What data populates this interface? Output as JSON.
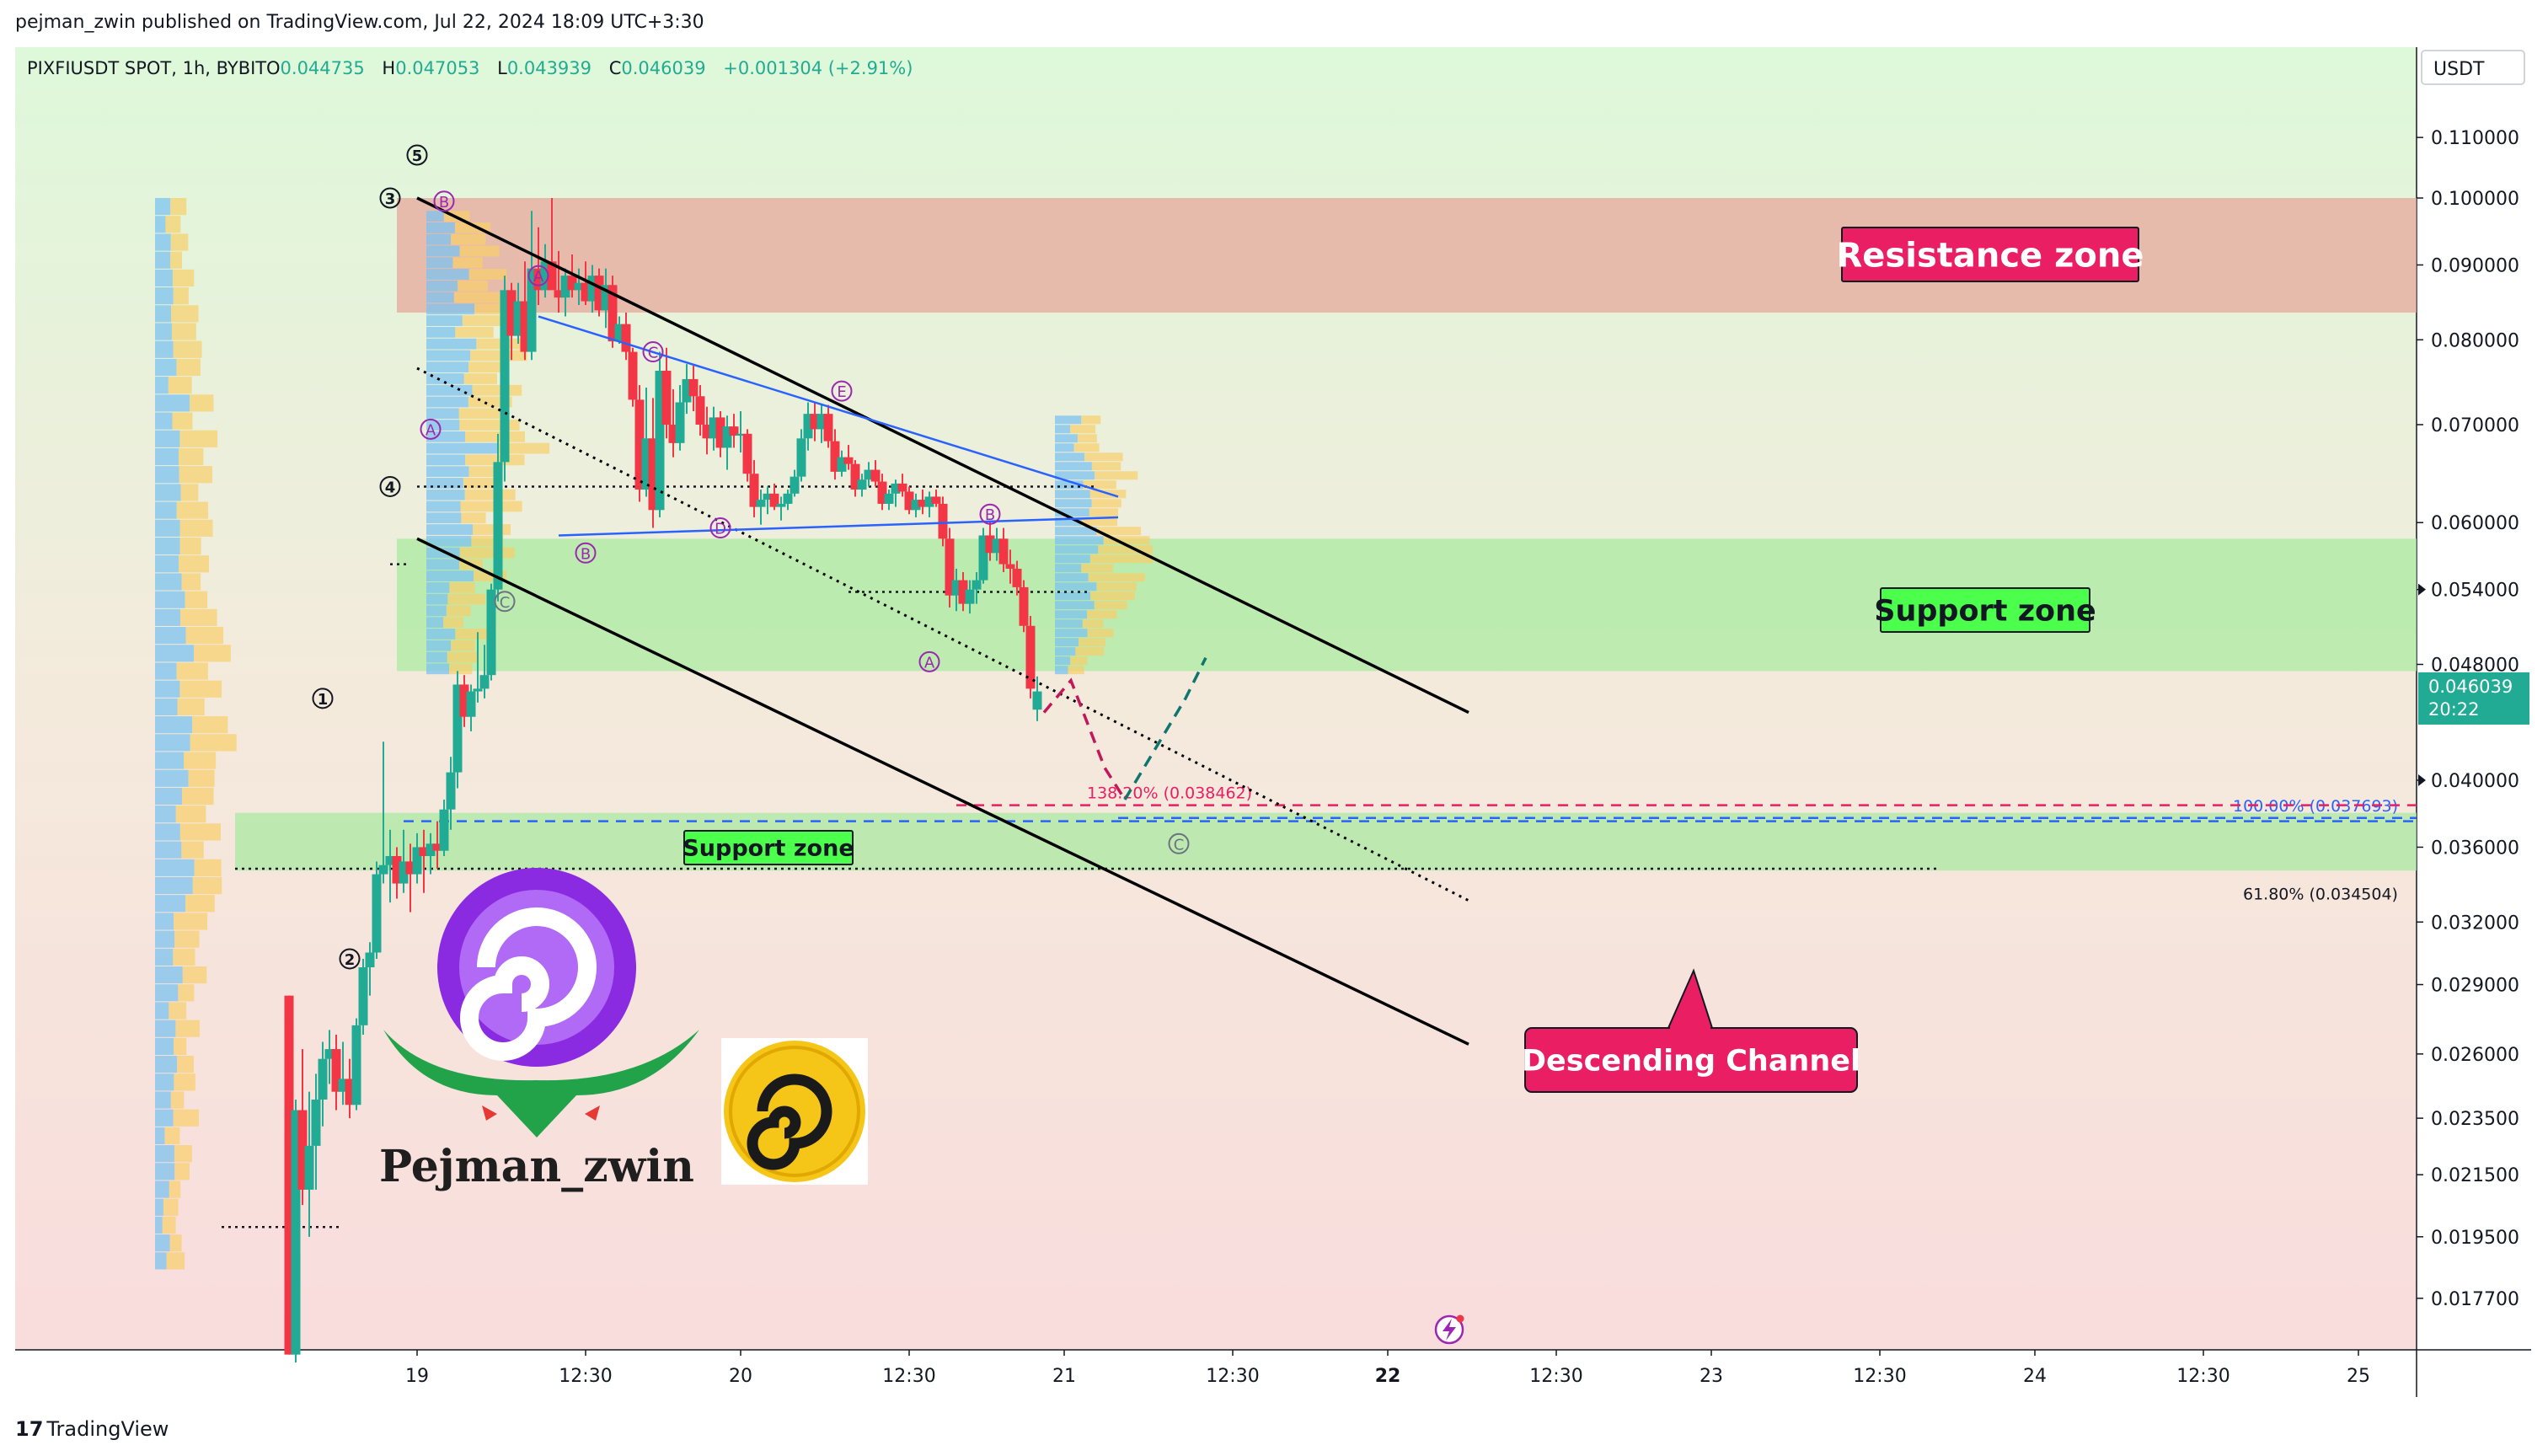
{
  "header": {
    "publish_line": "pejman_zwin published on TradingView.com, Jul 22, 2024 18:09 UTC+3:30"
  },
  "footer": {
    "logo_mark": "17",
    "logo_text": "TradingView"
  },
  "colors": {
    "up_candle": "#22ab94",
    "down_candle": "#f23645",
    "resistance_zone": "#e8a59a",
    "support_zone": "#a8eaa0",
    "channel_line": "#000000",
    "triangle_line": "#2962ff",
    "label_pink": "#e91e63",
    "label_green": "#4cff4c",
    "last_price_tag": "#22ab94",
    "fib_blue": "#2962ff",
    "fib_red": "#e91e63"
  },
  "chart_data": {
    "type": "candlestick",
    "symbol_line": {
      "symbol": "PIXFIUSDT SPOT, 1h, BYBIT",
      "o_label": "O",
      "o_value": "0.044735",
      "h_label": "H",
      "h_value": "0.047053",
      "l_label": "L",
      "l_value": "0.043939",
      "c_label": "C",
      "c_value": "0.046039",
      "change": "+0.001304 (+2.91%)"
    },
    "currency": "USDT",
    "y_scale": "log",
    "y_ticks": [
      "0.110000",
      "0.100000",
      "0.090000",
      "0.080000",
      "0.070000",
      "0.060000",
      "0.054000",
      "0.048000",
      "0.040000",
      "0.036000",
      "0.032000",
      "0.029000",
      "0.026000",
      "0.023500",
      "0.021500",
      "0.019500",
      "0.017700"
    ],
    "y_tick_values": [
      0.11,
      0.1,
      0.09,
      0.08,
      0.07,
      0.06,
      0.054,
      0.048,
      0.04,
      0.036,
      0.032,
      0.029,
      0.026,
      0.0235,
      0.0215,
      0.0195,
      0.0177
    ],
    "x_ticks": [
      {
        "label": "19",
        "t": 0
      },
      {
        "label": "12:30",
        "t": 12.5
      },
      {
        "label": "20",
        "t": 24
      },
      {
        "label": "12:30",
        "t": 36.5
      },
      {
        "label": "21",
        "t": 48
      },
      {
        "label": "12:30",
        "t": 60.5
      },
      {
        "label": "22",
        "t": 72,
        "bold": true
      },
      {
        "label": "12:30",
        "t": 84.5
      },
      {
        "label": "23",
        "t": 96
      },
      {
        "label": "12:30",
        "t": 108.5
      },
      {
        "label": "24",
        "t": 120
      },
      {
        "label": "12:30",
        "t": 132.5
      },
      {
        "label": "25",
        "t": 144
      },
      {
        "label": "12:30",
        "t": 156.5
      }
    ],
    "last_price": "0.046039",
    "countdown": "20:22",
    "last_price_value": 0.046039,
    "candles": [
      [
        -9.5,
        0.0285,
        0.0285,
        0.0162,
        0.0162
      ],
      [
        -9.0,
        0.0162,
        0.0242,
        0.016,
        0.0238
      ],
      [
        -8.5,
        0.0238,
        0.0262,
        0.0205,
        0.021
      ],
      [
        -8.0,
        0.021,
        0.0245,
        0.0195,
        0.0225
      ],
      [
        -7.5,
        0.0225,
        0.0252,
        0.021,
        0.0242
      ],
      [
        -7.0,
        0.0242,
        0.0265,
        0.0232,
        0.0258
      ],
      [
        -6.5,
        0.0258,
        0.027,
        0.0248,
        0.0262
      ],
      [
        -6.0,
        0.0262,
        0.0268,
        0.0238,
        0.0245
      ],
      [
        -5.5,
        0.0245,
        0.0265,
        0.024,
        0.025
      ],
      [
        -5.0,
        0.025,
        0.0258,
        0.0235,
        0.024
      ],
      [
        -4.5,
        0.024,
        0.0275,
        0.0238,
        0.0272
      ],
      [
        -4.0,
        0.0272,
        0.0302,
        0.0268,
        0.0298
      ],
      [
        -3.5,
        0.0298,
        0.031,
        0.0285,
        0.0305
      ],
      [
        -3.0,
        0.0305,
        0.0352,
        0.0302,
        0.0345
      ],
      [
        -2.5,
        0.0345,
        0.0425,
        0.034,
        0.035
      ],
      [
        -2.0,
        0.035,
        0.037,
        0.033,
        0.0355
      ],
      [
        -1.5,
        0.0355,
        0.036,
        0.0332,
        0.034
      ],
      [
        -1.0,
        0.034,
        0.037,
        0.0335,
        0.0352
      ],
      [
        -0.5,
        0.0352,
        0.0362,
        0.0325,
        0.0345
      ],
      [
        0.0,
        0.0345,
        0.0368,
        0.034,
        0.036
      ],
      [
        0.5,
        0.036,
        0.037,
        0.0335,
        0.0355
      ],
      [
        1.0,
        0.0355,
        0.0368,
        0.0345,
        0.0362
      ],
      [
        1.5,
        0.0362,
        0.0375,
        0.0348,
        0.0358
      ],
      [
        2.0,
        0.0358,
        0.0388,
        0.0355,
        0.0382
      ],
      [
        2.5,
        0.0382,
        0.0415,
        0.037,
        0.0405
      ],
      [
        3.0,
        0.0405,
        0.0475,
        0.0395,
        0.0465
      ],
      [
        3.5,
        0.0465,
        0.0472,
        0.0435,
        0.0442
      ],
      [
        4.0,
        0.0442,
        0.0465,
        0.0432,
        0.046
      ],
      [
        4.5,
        0.046,
        0.0505,
        0.0452,
        0.0462
      ],
      [
        5.0,
        0.0462,
        0.0495,
        0.0455,
        0.0472
      ],
      [
        5.5,
        0.0472,
        0.0545,
        0.0468,
        0.054
      ],
      [
        6.0,
        0.054,
        0.069,
        0.053,
        0.066
      ],
      [
        6.5,
        0.066,
        0.0885,
        0.064,
        0.0865
      ],
      [
        7.0,
        0.0865,
        0.0875,
        0.0775,
        0.0805
      ],
      [
        7.5,
        0.0805,
        0.0875,
        0.0795,
        0.085
      ],
      [
        8.0,
        0.085,
        0.0905,
        0.0775,
        0.0785
      ],
      [
        8.5,
        0.0785,
        0.098,
        0.0775,
        0.0895
      ],
      [
        9.0,
        0.0895,
        0.0955,
        0.0845,
        0.0865
      ],
      [
        9.5,
        0.0865,
        0.093,
        0.0855,
        0.0905
      ],
      [
        10.0,
        0.0905,
        0.1,
        0.087,
        0.0865
      ],
      [
        10.5,
        0.0865,
        0.092,
        0.0835,
        0.0855
      ],
      [
        11.0,
        0.0855,
        0.0895,
        0.083,
        0.0885
      ],
      [
        11.5,
        0.0885,
        0.0915,
        0.0855,
        0.0865
      ],
      [
        12.0,
        0.0865,
        0.0895,
        0.0845,
        0.0875
      ],
      [
        12.5,
        0.0875,
        0.0905,
        0.0845,
        0.085
      ],
      [
        13.0,
        0.085,
        0.09,
        0.0835,
        0.0885
      ],
      [
        13.5,
        0.0885,
        0.0895,
        0.083,
        0.0838
      ],
      [
        14.0,
        0.0838,
        0.0895,
        0.0815,
        0.0872
      ],
      [
        14.5,
        0.0872,
        0.0885,
        0.079,
        0.0798
      ],
      [
        15.0,
        0.0798,
        0.083,
        0.0795,
        0.082
      ],
      [
        15.5,
        0.082,
        0.0835,
        0.0775,
        0.0785
      ],
      [
        16.0,
        0.0785,
        0.079,
        0.072,
        0.0728
      ],
      [
        16.5,
        0.0728,
        0.0745,
        0.062,
        0.0632
      ],
      [
        17.0,
        0.0632,
        0.0742,
        0.0625,
        0.0685
      ],
      [
        17.5,
        0.0685,
        0.073,
        0.0595,
        0.0612
      ],
      [
        18.0,
        0.0612,
        0.0785,
        0.0605,
        0.0762
      ],
      [
        18.5,
        0.0762,
        0.079,
        0.0685,
        0.07
      ],
      [
        19.0,
        0.07,
        0.074,
        0.0665,
        0.068
      ],
      [
        19.5,
        0.068,
        0.0745,
        0.0672,
        0.0725
      ],
      [
        20.0,
        0.0725,
        0.077,
        0.0712,
        0.0752
      ],
      [
        20.5,
        0.0752,
        0.0768,
        0.0715,
        0.0732
      ],
      [
        21.0,
        0.0732,
        0.0745,
        0.0688,
        0.07
      ],
      [
        21.5,
        0.07,
        0.072,
        0.0668,
        0.0685
      ],
      [
        22.0,
        0.0685,
        0.072,
        0.0672,
        0.0708
      ],
      [
        22.5,
        0.0708,
        0.0715,
        0.0665,
        0.0675
      ],
      [
        23.0,
        0.0675,
        0.071,
        0.0652,
        0.0698
      ],
      [
        23.5,
        0.0698,
        0.0712,
        0.0675,
        0.0688
      ],
      [
        24.0,
        0.0688,
        0.0715,
        0.067,
        0.069
      ],
      [
        24.5,
        0.069,
        0.0695,
        0.064,
        0.0648
      ],
      [
        25.0,
        0.0648,
        0.0662,
        0.0605,
        0.0615
      ],
      [
        25.5,
        0.0615,
        0.0632,
        0.0598,
        0.0622
      ],
      [
        26.0,
        0.0622,
        0.0635,
        0.0608,
        0.0628
      ],
      [
        26.5,
        0.0628,
        0.0638,
        0.0612,
        0.0615
      ],
      [
        27.0,
        0.0615,
        0.0625,
        0.0602,
        0.0618
      ],
      [
        27.5,
        0.0618,
        0.0632,
        0.0612,
        0.0628
      ],
      [
        28.0,
        0.0628,
        0.0652,
        0.0625,
        0.0645
      ],
      [
        28.5,
        0.0645,
        0.0695,
        0.064,
        0.0685
      ],
      [
        29.0,
        0.0685,
        0.0725,
        0.0672,
        0.0712
      ],
      [
        29.5,
        0.0712,
        0.0725,
        0.0682,
        0.0695
      ],
      [
        30.0,
        0.0695,
        0.0722,
        0.068,
        0.0712
      ],
      [
        30.5,
        0.0712,
        0.0722,
        0.0675,
        0.0682
      ],
      [
        31.0,
        0.0682,
        0.0695,
        0.0642,
        0.065
      ],
      [
        31.5,
        0.065,
        0.0672,
        0.0645,
        0.0665
      ],
      [
        32.0,
        0.0665,
        0.0678,
        0.0652,
        0.0658
      ],
      [
        32.5,
        0.0658,
        0.0662,
        0.0625,
        0.0632
      ],
      [
        33.0,
        0.0632,
        0.0648,
        0.0625,
        0.0642
      ],
      [
        33.5,
        0.0642,
        0.066,
        0.0635,
        0.0652
      ],
      [
        34.0,
        0.0652,
        0.0662,
        0.0635,
        0.064
      ],
      [
        34.5,
        0.064,
        0.0648,
        0.0612,
        0.0618
      ],
      [
        35.0,
        0.0618,
        0.0632,
        0.0612,
        0.0628
      ],
      [
        35.5,
        0.0628,
        0.0642,
        0.0615,
        0.0638
      ],
      [
        36.0,
        0.0638,
        0.0648,
        0.0625,
        0.063
      ],
      [
        36.5,
        0.063,
        0.0635,
        0.0608,
        0.0612
      ],
      [
        37.0,
        0.0612,
        0.0628,
        0.0605,
        0.0622
      ],
      [
        37.5,
        0.0622,
        0.0632,
        0.0608,
        0.0615
      ],
      [
        38.0,
        0.0615,
        0.063,
        0.0605,
        0.0625
      ],
      [
        38.5,
        0.0625,
        0.0632,
        0.0615,
        0.0618
      ],
      [
        39.0,
        0.0618,
        0.0625,
        0.0578,
        0.0585
      ],
      [
        39.5,
        0.0585,
        0.0595,
        0.0525,
        0.0535
      ],
      [
        40.0,
        0.0535,
        0.0558,
        0.0522,
        0.0548
      ],
      [
        40.5,
        0.0548,
        0.0555,
        0.0522,
        0.0528
      ],
      [
        41.0,
        0.0528,
        0.0548,
        0.052,
        0.054
      ],
      [
        41.5,
        0.054,
        0.0555,
        0.0528,
        0.0548
      ],
      [
        42.0,
        0.0548,
        0.0595,
        0.0545,
        0.0588
      ],
      [
        42.5,
        0.0588,
        0.0602,
        0.0565,
        0.0572
      ],
      [
        43.0,
        0.0572,
        0.0595,
        0.0565,
        0.0585
      ],
      [
        43.5,
        0.0585,
        0.0595,
        0.0555,
        0.0562
      ],
      [
        44.0,
        0.0562,
        0.0575,
        0.0545,
        0.0558
      ],
      [
        44.5,
        0.0558,
        0.0565,
        0.0535,
        0.0542
      ],
      [
        45.0,
        0.0542,
        0.0548,
        0.0505,
        0.051
      ],
      [
        45.5,
        0.051,
        0.0518,
        0.0455,
        0.0462
      ],
      [
        46.0,
        0.0447,
        0.0471,
        0.0439,
        0.046
      ]
    ],
    "zones": [
      {
        "label": "Resistance zone",
        "high": 0.1,
        "low": 0.0835,
        "t_start": -1.5
      },
      {
        "label": "Support zone",
        "high": 0.0585,
        "low": 0.0475,
        "t_start": -1.5
      },
      {
        "label": "Support zone",
        "high": 0.038,
        "low": 0.0347,
        "t_start": -13.5
      }
    ],
    "channel": {
      "upper": [
        [
          0.0,
          0.1
        ],
        [
          78.0,
          0.0445
        ]
      ],
      "lower": [
        [
          0.0,
          0.0585
        ],
        [
          78.0,
          0.0264
        ]
      ],
      "middle": [
        [
          0.0,
          0.0765
        ],
        [
          78.0,
          0.0331
        ]
      ]
    },
    "triangle": {
      "upper": [
        [
          9.0,
          0.083
        ],
        [
          52.0,
          0.0625
        ]
      ],
      "lower": [
        [
          10.5,
          0.0588
        ],
        [
          52.0,
          0.0605
        ]
      ]
    },
    "dotted_levels": [
      {
        "price": 0.0635,
        "t_start": 0.0,
        "t_end": 50.5
      },
      {
        "price": 0.0538,
        "t_start": 32.0,
        "t_end": 50.0
      },
      {
        "price": 0.0562,
        "t_start": -2.0,
        "t_end": -0.5
      },
      {
        "price": 0.0348,
        "t_start": -13.5,
        "t_end": 113.0
      },
      {
        "price": 0.0198,
        "t_start": -14.5,
        "t_end": -5.5
      }
    ],
    "wave_labels": [
      {
        "text": "5",
        "t": 0.0,
        "p": 0.107,
        "circled": "solid"
      },
      {
        "text": "3",
        "t": -2.0,
        "p": 0.1,
        "circled": "solid"
      },
      {
        "text": "4",
        "t": -2.0,
        "p": 0.0635,
        "circled": "solid"
      },
      {
        "text": "1",
        "t": -7.0,
        "p": 0.0455,
        "circled": "solid"
      },
      {
        "text": "2",
        "t": -5.0,
        "p": 0.0302,
        "circled": "solid"
      },
      {
        "text": "B",
        "t": 2.0,
        "p": 0.0995,
        "circled": "purple"
      },
      {
        "text": "A",
        "t": 9.0,
        "p": 0.0885,
        "circled": "purple"
      },
      {
        "text": "A",
        "t": 1.0,
        "p": 0.0695,
        "circled": "purple"
      },
      {
        "text": "B",
        "t": 12.5,
        "p": 0.0572,
        "circled": "purple"
      },
      {
        "text": "C",
        "t": 6.5,
        "p": 0.053,
        "circled": "gray"
      },
      {
        "text": "C",
        "t": 17.5,
        "p": 0.0785,
        "circled": "purple"
      },
      {
        "text": "D",
        "t": 22.5,
        "p": 0.0595,
        "circled": "purple"
      },
      {
        "text": "E",
        "t": 31.5,
        "p": 0.0738,
        "circled": "purple"
      },
      {
        "text": "B",
        "t": 42.5,
        "p": 0.0608,
        "circled": "purple"
      },
      {
        "text": "A",
        "t": 38.0,
        "p": 0.0482,
        "circled": "purple"
      },
      {
        "text": "C",
        "t": 56.5,
        "p": 0.0362,
        "circled": "gray"
      }
    ],
    "projection": {
      "down": [
        [
          46.5,
          0.0445
        ],
        [
          48.5,
          0.0468
        ],
        [
          51.0,
          0.0408
        ],
        [
          52.5,
          0.0388
        ]
      ],
      "up": [
        [
          52.5,
          0.0388
        ],
        [
          57.0,
          0.0455
        ],
        [
          58.5,
          0.0485
        ]
      ]
    },
    "fib": [
      {
        "label": "100.00%",
        "value": "(0.037693)",
        "price": 0.037693,
        "color": "blue",
        "t_start": 52.0
      },
      {
        "label": "138.20%",
        "value": "(0.038462)",
        "price": 0.038462,
        "color": "red",
        "t_start": 40.0
      },
      {
        "label": "61.80%",
        "value": "(0.034504)",
        "price": 0.034504,
        "color": "black",
        "t_start": -13.5
      },
      {
        "price": 0.0375,
        "color": "teal",
        "t_start": -1.0
      }
    ],
    "annotations": [
      {
        "text": "Resistance zone",
        "kind": "pink"
      },
      {
        "text": "Support zone",
        "kind": "green-big"
      },
      {
        "text": "Support zone",
        "kind": "green-small"
      },
      {
        "text": "Descending Channel",
        "kind": "pink-callout"
      }
    ],
    "branding": {
      "name": "Pejman_zwin"
    }
  }
}
